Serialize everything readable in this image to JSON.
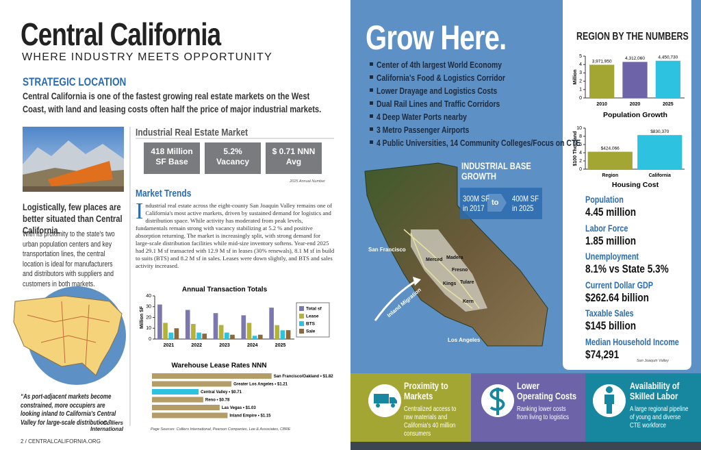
{
  "left_page": {
    "title": "Central California",
    "subtitle": "WHERE INDUSTRY MEETS OPPORTUNITY",
    "strategic_heading": "STRATEGIC LOCATION",
    "strategic_text": "Central California is one of the fastest growing real estate markets on the West Coast, with land and leasing costs often half the price of major industrial markets.",
    "side_lead": "Logistically, few places are better situated than Central California.",
    "side_text": "With its proximity to the state's two urban population centers and key transportation lines, the central location is ideal for manufacturers and distributors with suppliers and customers in both markets.",
    "quote": "“As port-adjacent markets become constrained, more occupiers are looking inland to California's Central Valley for large-scale distribution.”",
    "quote_source": "– Colliers International",
    "market_heading": "Industrial Real Estate Market",
    "stats": [
      {
        "value": "418 Million",
        "label": "SF Base"
      },
      {
        "value": "5.2%",
        "label": "Vacancy"
      },
      {
        "value": "$ 0.71 NNN",
        "label": "Avg"
      }
    ],
    "stats_note": "2025 Annual Number",
    "trends_heading": "Market Trends",
    "trends_text": "Industrial real estate across the eight-county San Joaquin Valley remains one of California's most active markets, driven by sustained demand for logistics and distribution space. While activity has moderated from peak levels, fundamentals remain strong with vacancy stabilizing at 5.2 % and positive absorption returning. The market is increasingly split, with strong demand for large-scale distribution facilities while mid-size inventory softens. Year-end 2025 had 29.1 M sf transacted with 12.9 M sf in leases (30% renewals), 8.1 M sf in build to suits (BTS) and 8.2 M sf in sales. Leases were down slightly, and BTS and sales activity increased.",
    "sources": "Page Sources: Colliers International, Pearson Companies, Lee & Associates, CBRE",
    "footer": "2 / CENTRALCALIFORNIA.ORG"
  },
  "chart_data": [
    {
      "type": "bar",
      "title": "Annual Transaction Totals",
      "y_label": "Million SF",
      "categories": [
        "2021",
        "2022",
        "2023",
        "2024",
        "2025"
      ],
      "series": [
        {
          "name": "Total sf",
          "color": "#7c78ad",
          "values": [
            32,
            27,
            24,
            22,
            29.1
          ]
        },
        {
          "name": "Lease",
          "color": "#b3b33c",
          "values": [
            15,
            14,
            13,
            15,
            12.9
          ]
        },
        {
          "name": "BTS",
          "color": "#2dc3e0",
          "values": [
            6,
            6,
            6,
            3,
            8.1
          ]
        },
        {
          "name": "Sale",
          "color": "#8a6a3c",
          "values": [
            10,
            5,
            4,
            4,
            8.2
          ]
        }
      ],
      "ylim": [
        0,
        40
      ],
      "yticks": [
        0,
        10,
        20,
        30,
        40
      ]
    },
    {
      "type": "hbar",
      "title": "Warehouse Lease Rates NNN",
      "categories": [
        "San Francisco/Oakland • $1.82",
        "Greater Los Angeles • $1.21",
        "Central Valley • $0.71",
        "Reno • $0.78",
        "Las Vegas • $1.03",
        "Inland Empire • $1.15"
      ],
      "values": [
        1.82,
        1.21,
        0.71,
        0.78,
        1.03,
        1.15
      ],
      "colors": [
        "#b39c66",
        "#b39c66",
        "#2dc3e0",
        "#b39c66",
        "#b39c66",
        "#b39c66"
      ]
    },
    {
      "type": "bar",
      "title": "Population Growth",
      "y_label": "Million",
      "categories": [
        "2010",
        "2020",
        "2025"
      ],
      "values": [
        3.97195,
        4.31206,
        4.45073
      ],
      "value_labels": [
        "3,971,950",
        "4,312,060",
        "4,450,730"
      ],
      "colors": [
        "#a3a632",
        "#6c63a8",
        "#2dc3e0"
      ],
      "ylim": [
        0,
        5
      ],
      "yticks": [
        0,
        1,
        2,
        3,
        4,
        5
      ]
    },
    {
      "type": "bar",
      "title": "Housing Cost",
      "y_label": "$100 Thousand",
      "categories": [
        "Region",
        "California"
      ],
      "values": [
        4.24066,
        8.3037
      ],
      "value_labels": [
        "$424,066",
        "$830,370"
      ],
      "colors": [
        "#a3a632",
        "#2dc3e0"
      ],
      "ylim": [
        0,
        10
      ],
      "yticks": [
        0,
        2,
        4,
        6,
        8,
        10
      ]
    }
  ],
  "right_page": {
    "headline": "Grow Here.",
    "bullets": [
      "Center of 4th largest World Economy",
      "California's Food & Logistics Corridor",
      "Lower Drayage and Logistics Costs",
      "Dual Rail Lines and Traffic Corridors",
      "4 Deep Water Ports nearby",
      "3 Metro Passenger Airports",
      "4 Public Universities, 14 Community Colleges/Focus on CTE"
    ],
    "growth": {
      "title": "INDUSTRIAL BASE GROWTH",
      "from": "300M SF in 2017",
      "to": "to",
      "target": "400M SF in 2025"
    },
    "map_labels": [
      "San Francisco",
      "Merced",
      "Madera",
      "Fresno",
      "Kings",
      "Tulare",
      "Kern",
      "Inland Migration",
      "Los Angeles"
    ],
    "numbers_heading": "REGION BY THE NUMBERS",
    "facts": [
      {
        "label": "Population",
        "value": "4.45 million"
      },
      {
        "label": "Labor Force",
        "value": "1.85 million"
      },
      {
        "label": "Unemployment",
        "value": "8.1% vs State 5.3%"
      },
      {
        "label": "Current Dollar GDP",
        "value": "$262.64 billion"
      },
      {
        "label": "Taxable Sales",
        "value": "$145 billion"
      },
      {
        "label": "Median Household Income",
        "value": "$74,291"
      }
    ],
    "facts_note": "San Joaquin Valley",
    "features": [
      {
        "title": "Proximity to Markets",
        "text": "Centralized access to raw materials and California's 40 million consumers"
      },
      {
        "title": "Lower Operating Costs",
        "text": "Ranking lower costs from living to logistics"
      },
      {
        "title": "Availability of Skilled Labor",
        "text": "A large regional pipeline of young and diverse CTE workforce"
      }
    ]
  }
}
